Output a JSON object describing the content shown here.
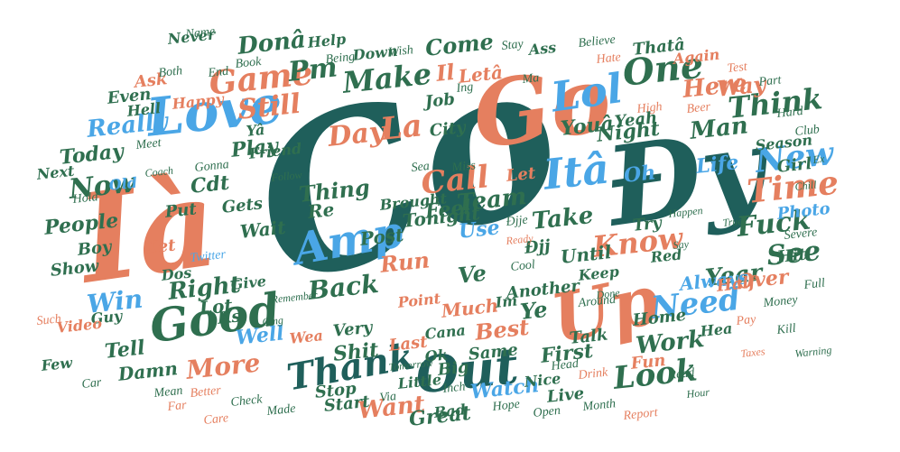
{
  "palette": {
    "dark_teal": "#1f5f5b",
    "green": "#2f6f4f",
    "salmon": "#e57f5f",
    "sky": "#4aa6e6"
  },
  "words": [
    {
      "text": "Co",
      "color": "dark_teal"
    },
    {
      "text": "Đy",
      "color": "dark_teal"
    },
    {
      "text": "Ià",
      "color": "salmon"
    },
    {
      "text": "Go",
      "color": "salmon"
    },
    {
      "text": "Out",
      "color": "dark_teal"
    },
    {
      "text": "Up",
      "color": "salmon"
    },
    {
      "text": "Love",
      "color": "sky"
    },
    {
      "text": "Itâ",
      "color": "sky"
    },
    {
      "text": "One",
      "color": "green"
    },
    {
      "text": "Lol",
      "color": "sky"
    },
    {
      "text": "Good",
      "color": "green"
    },
    {
      "text": "Amp",
      "color": "sky"
    },
    {
      "text": "Thank",
      "color": "dark_teal"
    },
    {
      "text": "Game",
      "color": "salmon"
    },
    {
      "text": "Make",
      "color": "green"
    },
    {
      "text": "Pm",
      "color": "green"
    },
    {
      "text": "Donâ",
      "color": "green"
    },
    {
      "text": "Need",
      "color": "sky"
    },
    {
      "text": "Look",
      "color": "green"
    },
    {
      "text": "Time",
      "color": "salmon"
    },
    {
      "text": "New",
      "color": "sky"
    },
    {
      "text": "Know",
      "color": "salmon"
    },
    {
      "text": "See",
      "color": "green"
    },
    {
      "text": "Fuck",
      "color": "green"
    },
    {
      "text": "Think",
      "color": "green"
    },
    {
      "text": "Day",
      "color": "salmon"
    },
    {
      "text": "La",
      "color": "salmon"
    },
    {
      "text": "Still",
      "color": "salmon"
    },
    {
      "text": "Call",
      "color": "salmon"
    },
    {
      "text": "Now",
      "color": "green"
    },
    {
      "text": "Here",
      "color": "salmon"
    },
    {
      "text": "Man",
      "color": "green"
    },
    {
      "text": "Way",
      "color": "salmon"
    },
    {
      "text": "Life",
      "color": "sky"
    },
    {
      "text": "Really",
      "color": "sky"
    },
    {
      "text": "Want",
      "color": "salmon"
    },
    {
      "text": "More",
      "color": "salmon"
    },
    {
      "text": "Work",
      "color": "green"
    },
    {
      "text": "Back",
      "color": "green"
    },
    {
      "text": "Run",
      "color": "salmon"
    },
    {
      "text": "Right",
      "color": "green"
    },
    {
      "text": "Win",
      "color": "sky"
    },
    {
      "text": "Year",
      "color": "green"
    },
    {
      "text": "Best",
      "color": "salmon"
    },
    {
      "text": "Ve",
      "color": "green"
    },
    {
      "text": "Ye",
      "color": "green"
    },
    {
      "text": "Team",
      "color": "green"
    },
    {
      "text": "Take",
      "color": "green"
    },
    {
      "text": "Night",
      "color": "green"
    },
    {
      "text": "Come",
      "color": "green"
    },
    {
      "text": "Oh",
      "color": "sky"
    },
    {
      "text": "Play",
      "color": "green"
    },
    {
      "text": "Thing",
      "color": "green"
    },
    {
      "text": "Cdt",
      "color": "green"
    },
    {
      "text": "Today",
      "color": "green"
    },
    {
      "text": "Well",
      "color": "sky"
    },
    {
      "text": "Shit",
      "color": "green"
    },
    {
      "text": "Watch",
      "color": "sky"
    },
    {
      "text": "Great",
      "color": "green"
    },
    {
      "text": "Over",
      "color": "salmon"
    },
    {
      "text": "Always",
      "color": "sky"
    },
    {
      "text": "Ks",
      "color": "green"
    },
    {
      "text": "Lot",
      "color": "green"
    },
    {
      "text": "Tell",
      "color": "green"
    },
    {
      "text": "Damn",
      "color": "green"
    },
    {
      "text": "Even",
      "color": "green"
    },
    {
      "text": "Ask",
      "color": "salmon"
    },
    {
      "text": "Hell",
      "color": "green"
    },
    {
      "text": "Yeah",
      "color": "green"
    },
    {
      "text": "Use",
      "color": "sky"
    },
    {
      "text": "Youâ",
      "color": "green"
    },
    {
      "text": "Much",
      "color": "salmon"
    },
    {
      "text": "Job",
      "color": "green"
    },
    {
      "text": "Il",
      "color": "salmon"
    },
    {
      "text": "Letâ",
      "color": "salmon"
    },
    {
      "text": "Feel",
      "color": "green"
    },
    {
      "text": "Post",
      "color": "green"
    },
    {
      "text": "Tonight",
      "color": "green"
    },
    {
      "text": "Until",
      "color": "green"
    },
    {
      "text": "Wait",
      "color": "green"
    },
    {
      "text": "Gets",
      "color": "green"
    },
    {
      "text": "Put",
      "color": "green"
    },
    {
      "text": "People",
      "color": "green"
    },
    {
      "text": "Boy",
      "color": "green"
    },
    {
      "text": "Show",
      "color": "green"
    },
    {
      "text": "Guy",
      "color": "green"
    },
    {
      "text": "Girl",
      "color": "green"
    },
    {
      "text": "Photo",
      "color": "sky"
    },
    {
      "text": "Season",
      "color": "green"
    },
    {
      "text": "Hit",
      "color": "green"
    },
    {
      "text": "Half",
      "color": "salmon"
    },
    {
      "text": "Talk",
      "color": "green"
    },
    {
      "text": "First",
      "color": "green"
    },
    {
      "text": "Live",
      "color": "green"
    },
    {
      "text": "Same",
      "color": "green"
    },
    {
      "text": "Stop",
      "color": "green"
    },
    {
      "text": "Start",
      "color": "green"
    },
    {
      "text": "Very",
      "color": "green"
    },
    {
      "text": "Last",
      "color": "salmon"
    },
    {
      "text": "Re",
      "color": "green"
    },
    {
      "text": "Brought",
      "color": "green"
    },
    {
      "text": "Let",
      "color": "salmon"
    },
    {
      "text": "Point",
      "color": "salmon"
    },
    {
      "text": "Ok",
      "color": "green"
    },
    {
      "text": "Fun",
      "color": "salmon"
    },
    {
      "text": "Home",
      "color": "green"
    },
    {
      "text": "Another",
      "color": "green"
    },
    {
      "text": "Little",
      "color": "green"
    },
    {
      "text": "Cana",
      "color": "green"
    },
    {
      "text": "Bad",
      "color": "green"
    },
    {
      "text": "Big",
      "color": "green"
    },
    {
      "text": "Keep",
      "color": "green"
    },
    {
      "text": "Try",
      "color": "green"
    },
    {
      "text": "Đjj",
      "color": "green"
    },
    {
      "text": "Xet",
      "color": "salmon"
    },
    {
      "text": "Happy",
      "color": "salmon"
    },
    {
      "text": "Next",
      "color": "green"
    },
    {
      "text": "Never",
      "color": "green"
    },
    {
      "text": "Name",
      "color": "green"
    },
    {
      "text": "Both",
      "color": "green"
    },
    {
      "text": "Few",
      "color": "green"
    },
    {
      "text": "Video",
      "color": "salmon"
    },
    {
      "text": "Dos",
      "color": "green"
    },
    {
      "text": "Give",
      "color": "green"
    },
    {
      "text": "Red",
      "color": "green"
    },
    {
      "text": "Hea",
      "color": "green"
    },
    {
      "text": "Nice",
      "color": "green"
    },
    {
      "text": "Im",
      "color": "green"
    },
    {
      "text": "Wea",
      "color": "salmon"
    },
    {
      "text": "Thatâ",
      "color": "green"
    },
    {
      "text": "Again",
      "color": "salmon"
    },
    {
      "text": "Hate",
      "color": "salmon"
    },
    {
      "text": "Believe",
      "color": "green"
    },
    {
      "text": "Ass",
      "color": "green"
    },
    {
      "text": "Help",
      "color": "green"
    },
    {
      "text": "Down",
      "color": "green"
    },
    {
      "text": "Wish",
      "color": "green"
    },
    {
      "text": "Stay",
      "color": "green"
    },
    {
      "text": "Being",
      "color": "green"
    },
    {
      "text": "Friend",
      "color": "green"
    },
    {
      "text": "Đjje",
      "color": "green"
    },
    {
      "text": "City",
      "color": "green"
    },
    {
      "text": "Ing",
      "color": "green"
    },
    {
      "text": "Sea",
      "color": "green"
    },
    {
      "text": "Ma",
      "color": "green"
    },
    {
      "text": "Yâ",
      "color": "green"
    },
    {
      "text": "Hold",
      "color": "green"
    },
    {
      "text": "Old",
      "color": "sky"
    },
    {
      "text": "Month",
      "color": "green"
    },
    {
      "text": "Report",
      "color": "salmon"
    },
    {
      "text": "Inch",
      "color": "green"
    },
    {
      "text": "Hope",
      "color": "green"
    },
    {
      "text": "Open",
      "color": "green"
    },
    {
      "text": "Head",
      "color": "green"
    },
    {
      "text": "Drink",
      "color": "salmon"
    },
    {
      "text": "Severe",
      "color": "green"
    },
    {
      "text": "Beer",
      "color": "salmon"
    },
    {
      "text": "Test",
      "color": "salmon"
    },
    {
      "text": "Hard",
      "color": "green"
    },
    {
      "text": "High",
      "color": "salmon"
    },
    {
      "text": "Part",
      "color": "green"
    },
    {
      "text": "Club",
      "color": "green"
    },
    {
      "text": "Full",
      "color": "green"
    },
    {
      "text": "Car",
      "color": "green"
    },
    {
      "text": "Such",
      "color": "salmon"
    },
    {
      "text": "Book",
      "color": "green"
    },
    {
      "text": "End",
      "color": "green"
    },
    {
      "text": "Meet",
      "color": "green"
    },
    {
      "text": "Gonna",
      "color": "green"
    },
    {
      "text": "Twitter",
      "color": "sky"
    },
    {
      "text": "Cool",
      "color": "green"
    },
    {
      "text": "Far",
      "color": "salmon"
    },
    {
      "text": "Mean",
      "color": "green"
    },
    {
      "text": "Check",
      "color": "green"
    },
    {
      "text": "Made",
      "color": "green"
    },
    {
      "text": "Via",
      "color": "green"
    },
    {
      "text": "Around",
      "color": "green"
    },
    {
      "text": "Care",
      "color": "salmon"
    },
    {
      "text": "Better",
      "color": "salmon"
    },
    {
      "text": "Miss",
      "color": "green"
    },
    {
      "text": "Pay",
      "color": "salmon"
    },
    {
      "text": "Money",
      "color": "green"
    },
    {
      "text": "Kill",
      "color": "green"
    },
    {
      "text": "Read",
      "color": "green"
    },
    {
      "text": "Remember",
      "color": "green"
    },
    {
      "text": "Omg",
      "color": "green"
    },
    {
      "text": "Warning",
      "color": "green"
    },
    {
      "text": "Taxes",
      "color": "salmon"
    },
    {
      "text": "Done",
      "color": "green"
    },
    {
      "text": "Ready",
      "color": "salmon"
    },
    {
      "text": "Happen",
      "color": "green"
    },
    {
      "text": "True",
      "color": "green"
    },
    {
      "text": "Say",
      "color": "green"
    },
    {
      "text": "Tomorrow",
      "color": "green"
    },
    {
      "text": "Follow",
      "color": "green"
    },
    {
      "text": "Hour",
      "color": "green"
    },
    {
      "text": "Ex",
      "color": "green"
    },
    {
      "text": "Chill",
      "color": "green"
    },
    {
      "text": "Coach",
      "color": "green"
    }
  ]
}
